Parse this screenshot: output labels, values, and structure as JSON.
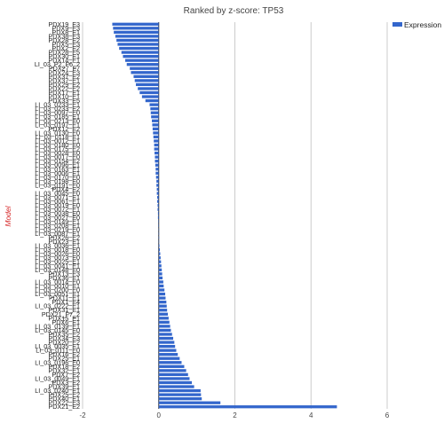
{
  "chart_data": {
    "type": "bar",
    "orientation": "horizontal",
    "title": "Ranked by z-score: TP53",
    "xlabel": "",
    "ylabel": "Model",
    "xlim": [
      -2,
      6
    ],
    "xticks": [
      -2,
      0,
      2,
      4,
      6
    ],
    "grid": true,
    "legend_position": "top-right",
    "series": [
      {
        "name": "Expression",
        "color": "#3366cc",
        "values": [
          -1.22,
          -1.2,
          -1.18,
          -1.14,
          -1.11,
          -1.08,
          -1.04,
          -0.98,
          -0.94,
          -0.88,
          -0.84,
          -0.76,
          -0.73,
          -0.66,
          -0.63,
          -0.6,
          -0.55,
          -0.5,
          -0.44,
          -0.35,
          -0.24,
          -0.22,
          -0.21,
          -0.2,
          -0.18,
          -0.17,
          -0.16,
          -0.15,
          -0.14,
          -0.13,
          -0.12,
          -0.12,
          -0.11,
          -0.1,
          -0.1,
          -0.09,
          -0.08,
          -0.08,
          -0.07,
          -0.06,
          -0.06,
          -0.05,
          -0.05,
          -0.04,
          -0.04,
          -0.03,
          -0.03,
          -0.02,
          -0.02,
          -0.01,
          -0.01,
          0.0,
          0.0,
          0.01,
          0.01,
          0.02,
          0.03,
          0.04,
          0.05,
          0.06,
          0.07,
          0.08,
          0.09,
          0.1,
          0.12,
          0.13,
          0.15,
          0.17,
          0.18,
          0.2,
          0.21,
          0.22,
          0.24,
          0.26,
          0.28,
          0.3,
          0.32,
          0.35,
          0.38,
          0.41,
          0.43,
          0.46,
          0.5,
          0.55,
          0.6,
          0.67,
          0.72,
          0.77,
          0.81,
          0.87,
          0.93,
          1.1,
          1.11,
          1.13,
          1.62,
          4.68
        ]
      }
    ],
    "categories": [
      "PDX19_E3",
      "PDX9_E3",
      "PDX8_E1",
      "PDX38_E3",
      "PDX28_E2",
      "PDX5_E3",
      "PDX2_E2",
      "PDX28_E5",
      "PDX30_E1",
      "PDX14_E1",
      "LI_03_P2_F6_2",
      "PDX27_F7",
      "PDX24_E3",
      "PDX37_E2",
      "PDX37_E1",
      "PDX29_E2",
      "PDX22_E2",
      "PDX17_E1",
      "PDX10_E1",
      "PDX33_E5",
      "LI_03_0233_E1",
      "LI_03_0233_E2",
      "LI_03_0097_E0",
      "LI_03_0185_E1",
      "LI_03_0213_E0",
      "LI_03_0197_E1",
      "PDX12_E2",
      "LI_03_0130_E0",
      "LI_03_0118_E1",
      "LI_03_0012_E1",
      "LI_03_0180_E0",
      "LI_03_0175_E2",
      "LI_03_0028_E0",
      "LI_03_0017_E0",
      "LI_03_0154_E2",
      "LI_03_0096_E1",
      "LI_03_0163_E1",
      "LI_03_0006_E1",
      "LI_03_0170_E0",
      "LI_03_0198_E0",
      "LI_03_0191_E0",
      "PDX4_E2",
      "LI_03_0045_E0",
      "LI_03_0071_E1",
      "LI_03_0061_E1",
      "LI_03_0019_E0",
      "LI_03_0072_E1",
      "LI_03_0038_E0",
      "LI_03_0027_E0",
      "LI_03_0149_E1",
      "LI_03_0208_E1",
      "LI_03_0219_E0",
      "LI_03_0087_E1",
      "PDX26_E2",
      "PDX23_E1",
      "LI_03_0036_E1",
      "LI_03_0018_E0",
      "LI_03_0026_E0",
      "LI_03_0073_E0",
      "LI_03_0025_E1",
      "LI_03_0041_E1",
      "LI_03_0148_E0",
      "PDX13_E3",
      "PDX36_E1",
      "LI_03_0014_E0",
      "LI_03_0010_E1",
      "LI_03_0200_E0",
      "LI_03_0051_E1",
      "PDX11_E1",
      "PDX1_E4",
      "LI_03_0222_E1",
      "PDX31_E1",
      "PDX21_F7_2",
      "PDX15_E1",
      "PDX6_E1",
      "LI_03_0139_E1",
      "LI_03_0145_E0",
      "PDX35_E2",
      "PDX34_E3",
      "PDX20_E2",
      "LI_03_0035_E1",
      "LI_03_0111_E0",
      "PDX16_E2",
      "PDX25_E1",
      "LI_03_0196_E0",
      "PDX18_E2",
      "PDX32_E1",
      "PDX7_E2",
      "LI_03_0049_E1",
      "PDX3_E2",
      "PDX39_E1",
      "LI_03_0240_E1",
      "PDX25_E2",
      "PDX40_E1",
      "PDX22_E3",
      "PDX21_E2"
    ]
  }
}
